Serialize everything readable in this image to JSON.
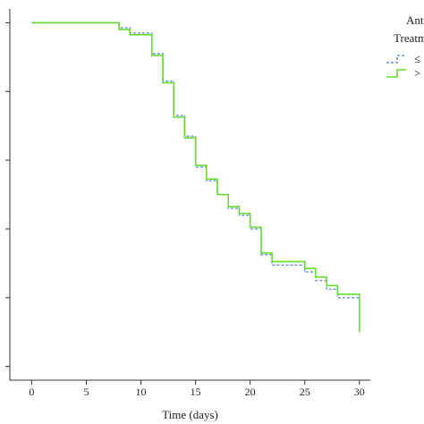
{
  "chart_data": {
    "type": "line",
    "title": "",
    "xlabel": "Time (days)",
    "ylabel": "",
    "xlim": [
      -2,
      31
    ],
    "ylim": [
      -0.04,
      1.04
    ],
    "x_ticks": [
      "0",
      "5",
      "10",
      "15",
      "20",
      "25",
      "30"
    ],
    "y_ticks": [
      0.0,
      0.2,
      0.4,
      0.6,
      0.8,
      1.0
    ],
    "grid": false,
    "legend": {
      "title_lines": [
        "Ant",
        "Treatm"
      ],
      "entries": [
        {
          "label": "≤",
          "color": "#6b8fd4",
          "style": "dashed"
        },
        {
          "label": ">",
          "color": "#66dd33",
          "style": "solid"
        }
      ]
    },
    "series": [
      {
        "color": "#6b8fd4",
        "style": "dashed",
        "step_points": [
          [
            0,
            1.0
          ],
          [
            8,
            1.0
          ],
          [
            8,
            0.985
          ],
          [
            9,
            0.985
          ],
          [
            9,
            0.97
          ],
          [
            11,
            0.97
          ],
          [
            11,
            0.91
          ],
          [
            12,
            0.91
          ],
          [
            12,
            0.83
          ],
          [
            13,
            0.83
          ],
          [
            13,
            0.73
          ],
          [
            14,
            0.73
          ],
          [
            14,
            0.67
          ],
          [
            15,
            0.67
          ],
          [
            15,
            0.58
          ],
          [
            16,
            0.58
          ],
          [
            16,
            0.54
          ],
          [
            17,
            0.54
          ],
          [
            17,
            0.5
          ],
          [
            18,
            0.5
          ],
          [
            18,
            0.46
          ],
          [
            19,
            0.46
          ],
          [
            19,
            0.44
          ],
          [
            20,
            0.44
          ],
          [
            20,
            0.4
          ],
          [
            21,
            0.4
          ],
          [
            21,
            0.325
          ],
          [
            22,
            0.325
          ],
          [
            22,
            0.295
          ],
          [
            25,
            0.295
          ],
          [
            25,
            0.275
          ],
          [
            26,
            0.275
          ],
          [
            26,
            0.25
          ],
          [
            27,
            0.25
          ],
          [
            27,
            0.225
          ],
          [
            28,
            0.225
          ],
          [
            28,
            0.2
          ],
          [
            30,
            0.2
          ],
          [
            30,
            0.1
          ]
        ]
      },
      {
        "color": "#66dd33",
        "style": "solid",
        "step_points": [
          [
            0,
            1.0
          ],
          [
            8,
            1.0
          ],
          [
            8,
            0.98
          ],
          [
            9,
            0.98
          ],
          [
            9,
            0.965
          ],
          [
            11,
            0.965
          ],
          [
            11,
            0.905
          ],
          [
            12,
            0.905
          ],
          [
            12,
            0.825
          ],
          [
            13,
            0.825
          ],
          [
            13,
            0.725
          ],
          [
            14,
            0.725
          ],
          [
            14,
            0.665
          ],
          [
            15,
            0.665
          ],
          [
            15,
            0.585
          ],
          [
            16,
            0.585
          ],
          [
            16,
            0.545
          ],
          [
            17,
            0.545
          ],
          [
            17,
            0.5
          ],
          [
            18,
            0.5
          ],
          [
            18,
            0.465
          ],
          [
            19,
            0.465
          ],
          [
            19,
            0.445
          ],
          [
            20,
            0.445
          ],
          [
            20,
            0.405
          ],
          [
            21,
            0.405
          ],
          [
            21,
            0.33
          ],
          [
            22,
            0.33
          ],
          [
            22,
            0.305
          ],
          [
            25,
            0.305
          ],
          [
            25,
            0.285
          ],
          [
            26,
            0.285
          ],
          [
            26,
            0.26
          ],
          [
            27,
            0.26
          ],
          [
            27,
            0.235
          ],
          [
            28,
            0.235
          ],
          [
            28,
            0.21
          ],
          [
            30,
            0.21
          ],
          [
            30,
            0.1
          ]
        ]
      }
    ]
  }
}
